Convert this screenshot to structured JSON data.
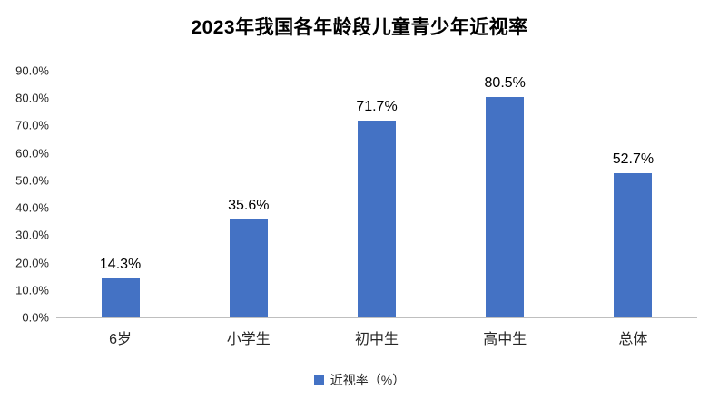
{
  "chart_data": {
    "type": "bar",
    "title": "2023年我国各年龄段儿童青少年近视率",
    "categories": [
      "6岁",
      "小学生",
      "初中生",
      "高中生",
      "总体"
    ],
    "values": [
      14.3,
      35.6,
      71.7,
      80.5,
      52.7
    ],
    "data_labels": [
      "14.3%",
      "35.6%",
      "71.7%",
      "80.5%",
      "52.7%"
    ],
    "y_ticks": [
      "90.0%",
      "80.0%",
      "70.0%",
      "60.0%",
      "50.0%",
      "40.0%",
      "30.0%",
      "20.0%",
      "10.0%",
      "0.0%"
    ],
    "ylim": [
      0,
      90
    ],
    "xlabel": "",
    "ylabel": "",
    "grid": "off",
    "legend": {
      "position": "bottom",
      "label": "近视率（%）"
    },
    "bar_color": "#4472C4",
    "axis_line_color": "#bfbfbf"
  }
}
